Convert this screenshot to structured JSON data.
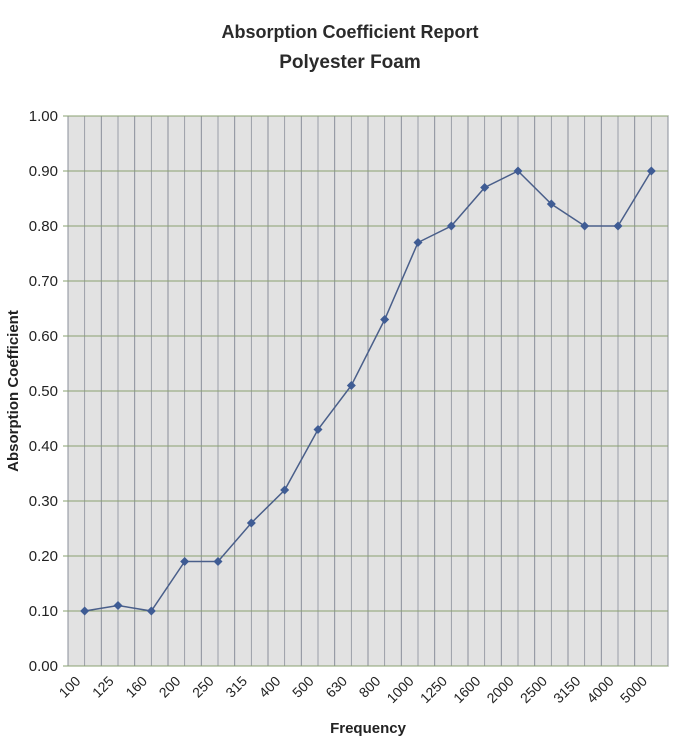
{
  "chart_data": {
    "type": "line",
    "title": "Absorption Coefficient Report",
    "subtitle": "Polyester Foam",
    "xlabel": "Frequency",
    "ylabel": "Absorption Coefficient",
    "categories": [
      "100",
      "125",
      "160",
      "200",
      "250",
      "315",
      "400",
      "500",
      "630",
      "800",
      "1000",
      "1250",
      "1600",
      "2000",
      "2500",
      "3150",
      "4000",
      "5000"
    ],
    "values": [
      0.1,
      0.11,
      0.1,
      0.19,
      0.19,
      0.26,
      0.32,
      0.43,
      0.51,
      0.63,
      0.77,
      0.8,
      0.87,
      0.9,
      0.84,
      0.8,
      0.8,
      0.9
    ],
    "ylim": [
      0,
      1.0
    ],
    "yticks": [
      "0.00",
      "0.10",
      "0.20",
      "0.30",
      "0.40",
      "0.50",
      "0.60",
      "0.70",
      "0.80",
      "0.90",
      "1.00"
    ],
    "grid": true,
    "legend": "none",
    "colors": {
      "line": "#4a5f8a",
      "marker": "#3f5c94",
      "plot_background": "#e2e2e2",
      "horizontal_grid": "#8aa070",
      "vertical_grid": "#8a8f9a"
    }
  }
}
